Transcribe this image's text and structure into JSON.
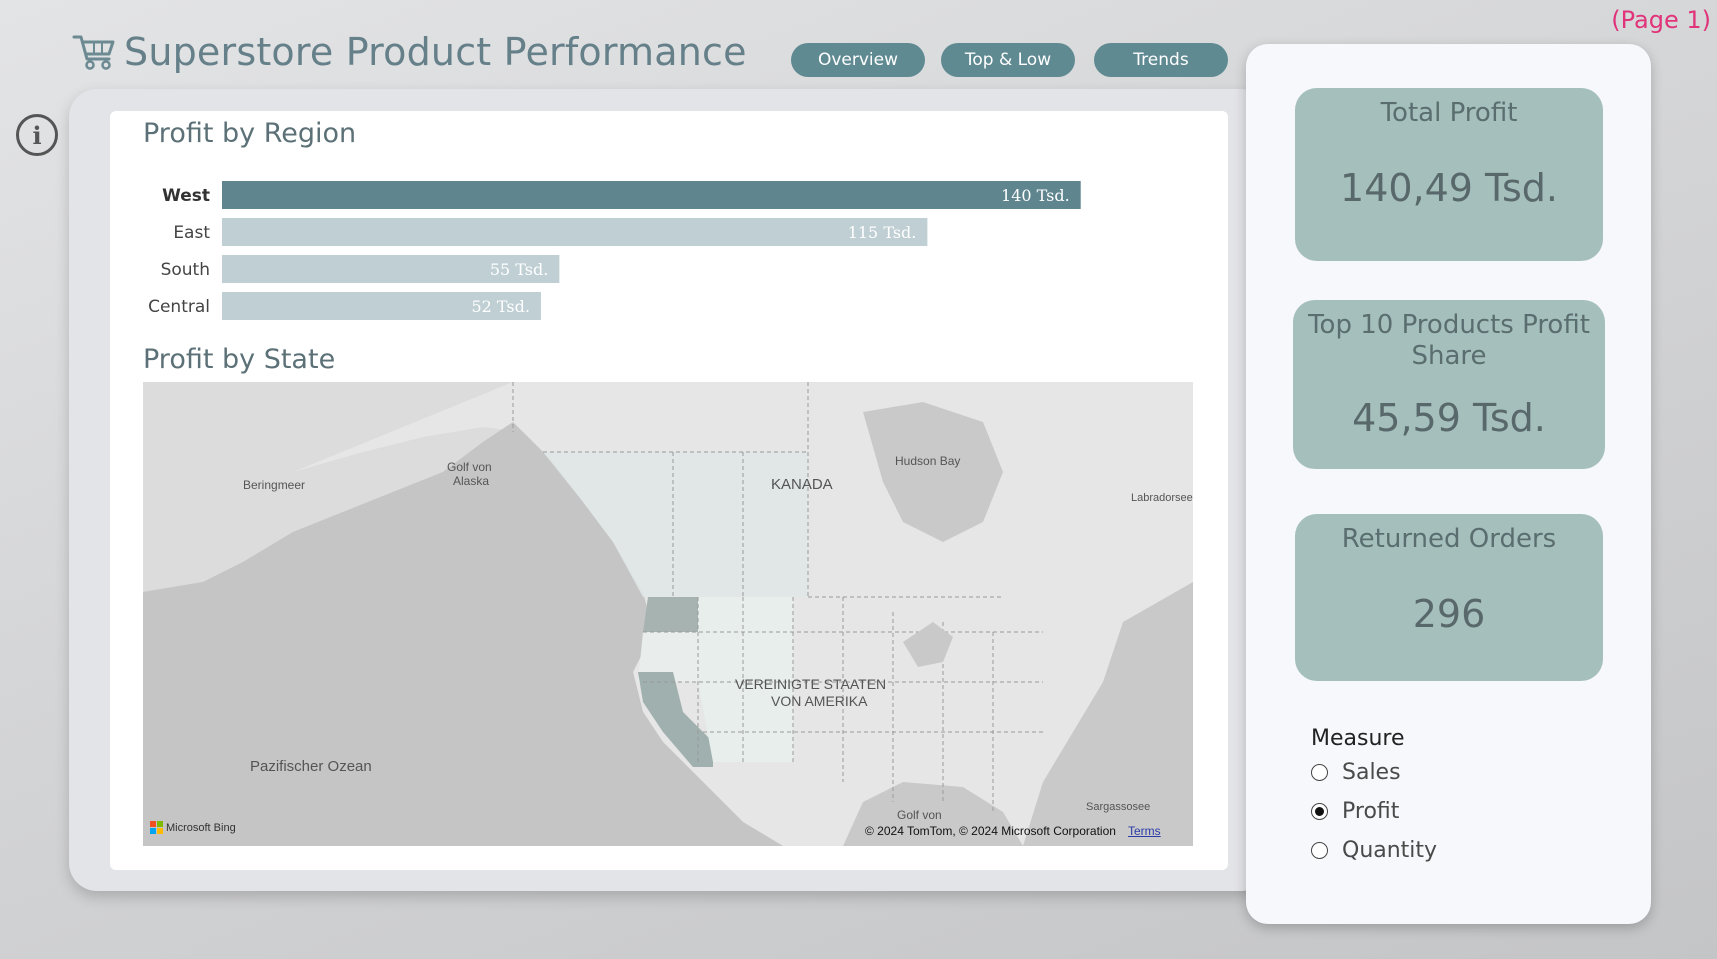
{
  "page_label": "(Page 1)",
  "header": {
    "title": "Superstore Product Performance"
  },
  "nav": [
    {
      "label": "Overview"
    },
    {
      "label": "Top & Low"
    },
    {
      "label": "Trends"
    }
  ],
  "info": {
    "label": "i"
  },
  "region_chart": {
    "title": "Profit by Region",
    "chart_data": {
      "type": "bar",
      "orientation": "horizontal",
      "categories": [
        "West",
        "East",
        "South",
        "Central"
      ],
      "values": [
        140,
        115,
        55,
        52
      ],
      "value_labels": [
        "140 Tsd.",
        "115 Tsd.",
        "55 Tsd.",
        "52 Tsd."
      ],
      "unit": "Tsd.",
      "highlighted": "West",
      "colors": {
        "highlight": "#5f868f",
        "default": "#bfcfd3"
      }
    }
  },
  "state_map": {
    "title": "Profit by State",
    "labels": {
      "beringmeer": "Beringmeer",
      "golf_alaska_1": "Golf von",
      "golf_alaska_2": "Alaska",
      "kanada": "KANADA",
      "hudson_bay": "Hudson Bay",
      "labradorsee": "Labradorsee",
      "usa_1": "VEREINIGTE STAATEN",
      "usa_2": "VON AMERIKA",
      "pacific": "Pazifischer Ozean",
      "golf_mexico": "Golf von",
      "sargasso": "Sargassosee"
    },
    "bing_logo": "Microsoft Bing",
    "copyright": "© 2024 TomTom, © 2024 Microsoft Corporation",
    "terms": "Terms"
  },
  "kpis": [
    {
      "label": "Total Profit",
      "value": "140,49 Tsd."
    },
    {
      "label": "Top 10 Products Profit Share",
      "value": "45,59 Tsd."
    },
    {
      "label": "Returned Orders",
      "value": "296"
    }
  ],
  "measure": {
    "title": "Measure",
    "options": [
      {
        "label": "Sales",
        "selected": false
      },
      {
        "label": "Profit",
        "selected": true
      },
      {
        "label": "Quantity",
        "selected": false
      }
    ]
  }
}
